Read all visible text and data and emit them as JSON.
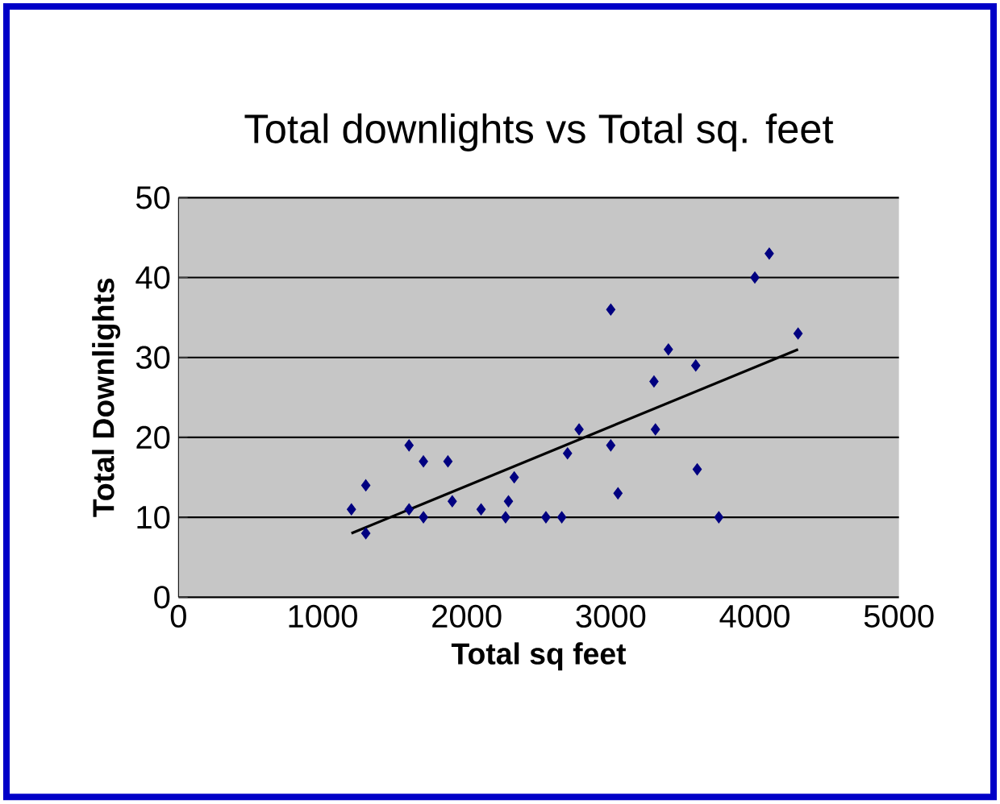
{
  "chart_data": {
    "type": "scatter",
    "title": "Total downlights vs Total sq. feet",
    "xlabel": "Total sq feet",
    "ylabel": "Total Downlights",
    "xlim": [
      0,
      5000
    ],
    "xticks": [
      0,
      1000,
      2000,
      3000,
      4000,
      5000
    ],
    "ylim": [
      0,
      50
    ],
    "yticks": [
      0,
      10,
      20,
      30,
      40,
      50
    ],
    "grid": "y",
    "series": [
      {
        "color": "#000080",
        "marker": "diamond",
        "x": [
          1200,
          1300,
          1300,
          1600,
          1600,
          1700,
          1700,
          1870,
          1900,
          2100,
          2270,
          2290,
          2330,
          2550,
          2660,
          2700,
          2780,
          3000,
          3000,
          3050,
          3300,
          3310,
          3400,
          3590,
          3600,
          3750,
          4000,
          4100,
          4300
        ],
        "values": [
          11,
          14,
          8,
          19,
          11,
          17,
          10,
          17,
          12,
          11,
          10,
          12,
          15,
          10,
          10,
          18,
          21,
          36,
          19,
          13,
          27,
          21,
          31,
          29,
          16,
          10,
          40,
          43,
          33
        ]
      },
      {
        "type": "line",
        "color": "#000000",
        "marker": "none",
        "x": [
          1200,
          4300
        ],
        "values": [
          8,
          31
        ]
      }
    ]
  }
}
